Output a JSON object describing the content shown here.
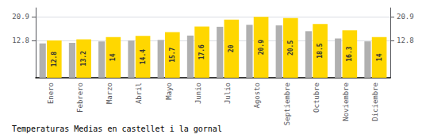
{
  "chart_data": {
    "type": "bar",
    "title": "Temperaturas Medias en castellet i la gornal",
    "categories": [
      "Enero",
      "Febrero",
      "Marzo",
      "Abril",
      "Mayo",
      "Junio",
      "Julio",
      "Agosto",
      "Septiembre",
      "Octubre",
      "Noviembre",
      "Diciembre"
    ],
    "series": [
      {
        "color": "#B0B0B0",
        "values": [
          11.8,
          12.0,
          12.5,
          12.8,
          13.0,
          14.5,
          17.5,
          18.2,
          18.0,
          16.0,
          13.5,
          12.5
        ]
      },
      {
        "color": "#FFD700",
        "values": [
          12.8,
          13.2,
          14.0,
          14.4,
          15.7,
          17.6,
          20.0,
          20.9,
          20.5,
          18.5,
          16.3,
          14.0
        ],
        "data_labels": true
      }
    ],
    "ylim": [
      0,
      24.0
    ],
    "yticks": [
      12.8,
      20.9
    ],
    "y2lim": [
      0,
      24.0
    ],
    "y2ticks": [
      12.8,
      20.9
    ],
    "grid": true
  }
}
